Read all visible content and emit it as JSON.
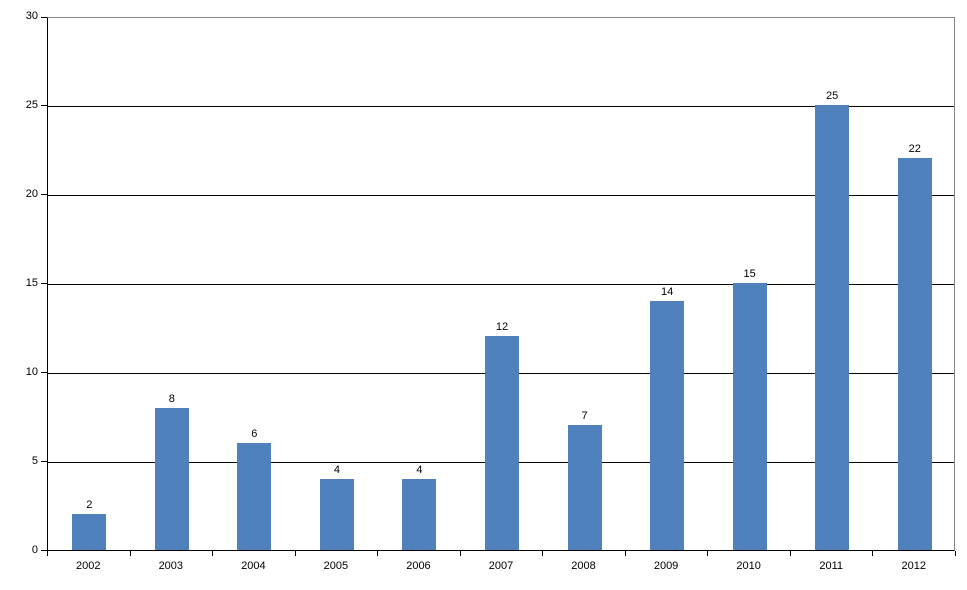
{
  "chart_data": {
    "type": "bar",
    "title": "",
    "xlabel": "",
    "ylabel": "",
    "categories": [
      "2002",
      "2003",
      "2004",
      "2005",
      "2006",
      "2007",
      "2008",
      "2009",
      "2010",
      "2011",
      "2012"
    ],
    "values": [
      2,
      8,
      6,
      4,
      4,
      12,
      7,
      14,
      15,
      25,
      22
    ],
    "data_labels": [
      "2",
      "8",
      "6",
      "4",
      "4",
      "12",
      "7",
      "14",
      "15",
      "25",
      "22"
    ],
    "ylim": [
      0,
      30
    ],
    "y_ticks": [
      0,
      5,
      10,
      15,
      20,
      25,
      30
    ],
    "grid": "horizontal",
    "legend": "none",
    "bar_color": "#4F81BD",
    "gridline_color": "#000000",
    "axis_color": "#000000",
    "plot_border_color": "#868686"
  }
}
